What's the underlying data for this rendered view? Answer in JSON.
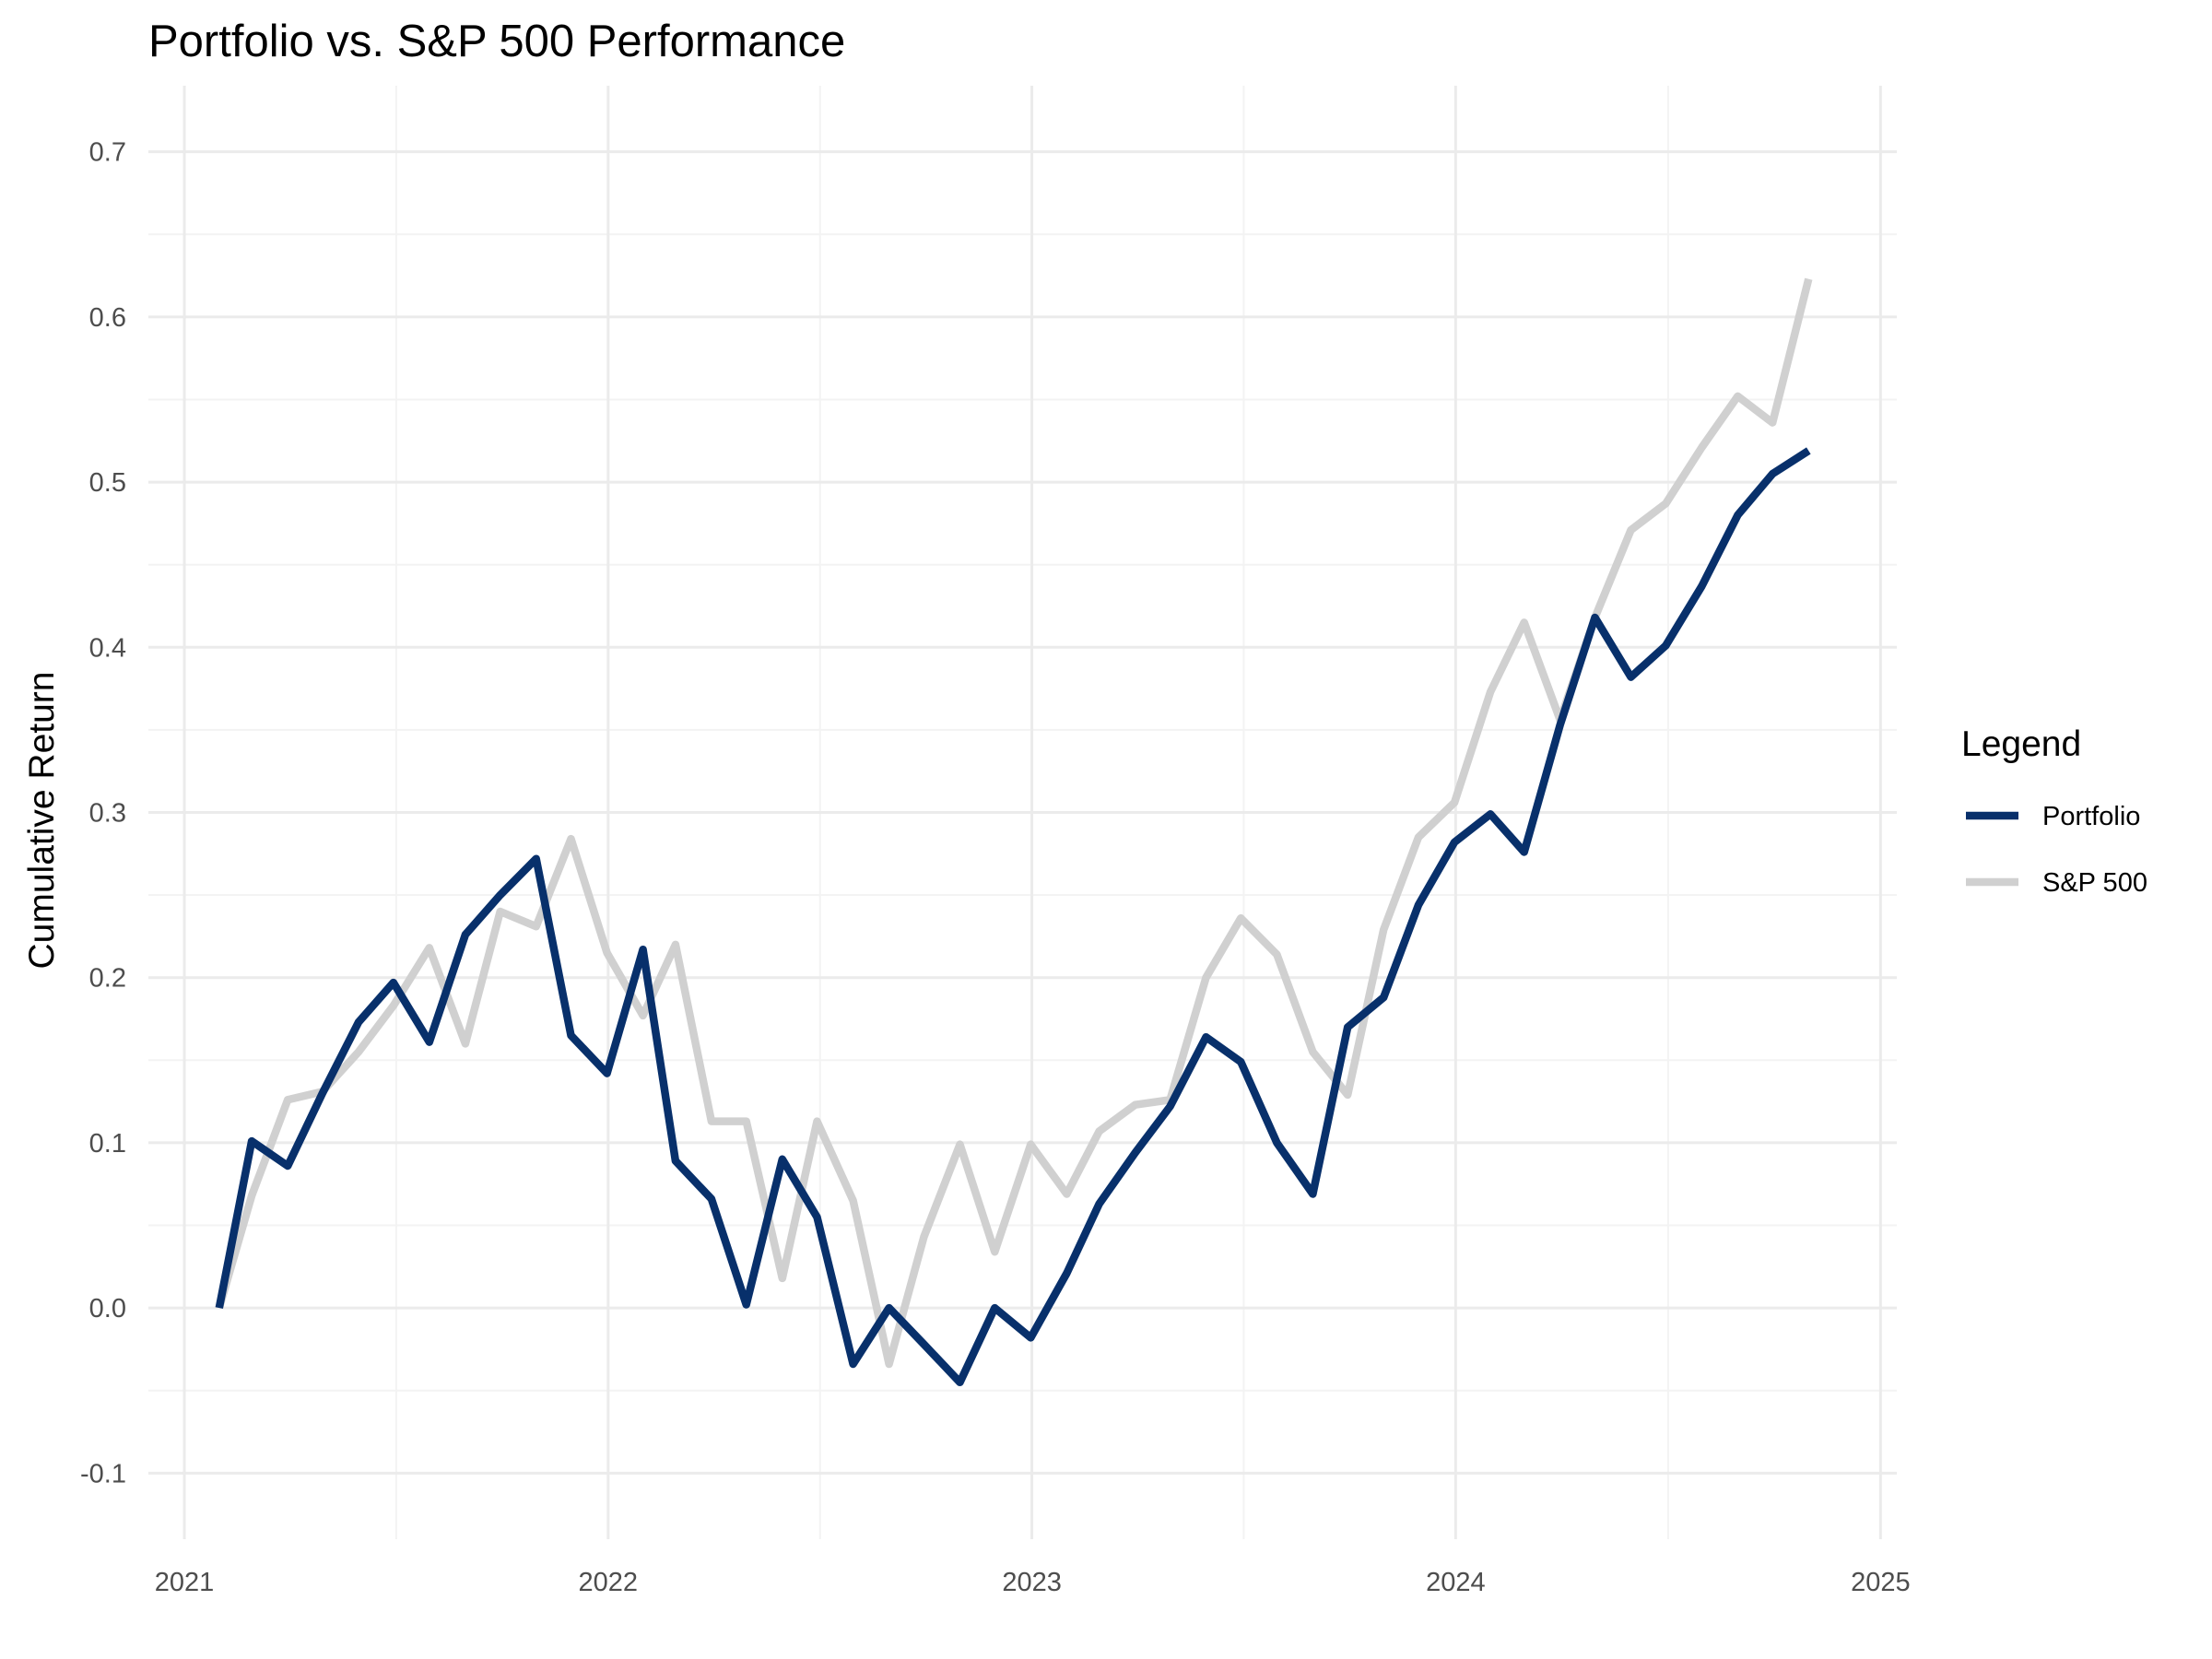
{
  "chart_data": {
    "type": "line",
    "title": "Portfolio vs. S&P 500 Performance",
    "xlabel": "",
    "ylabel": "Cumulative Return",
    "xlim": [
      "2020-12-01",
      "2025-01-15"
    ],
    "ylim": [
      -0.14,
      0.74
    ],
    "x_ticks": [
      "2021-01-01",
      "2022-01-01",
      "2023-01-01",
      "2024-01-01",
      "2025-01-01"
    ],
    "x_tick_labels": [
      "2021",
      "2022",
      "2023",
      "2024",
      "2025"
    ],
    "y_ticks": [
      -0.1,
      0.0,
      0.1,
      0.2,
      0.3,
      0.4,
      0.5,
      0.6,
      0.7
    ],
    "y_tick_labels": [
      "-0.1",
      "0.0",
      "0.1",
      "0.2",
      "0.3",
      "0.4",
      "0.5",
      "0.6",
      "0.7"
    ],
    "grid": true,
    "legend": {
      "title": "Legend",
      "position": "right"
    },
    "x": [
      "2021-01-31",
      "2021-02-28",
      "2021-03-31",
      "2021-04-30",
      "2021-05-31",
      "2021-06-30",
      "2021-07-31",
      "2021-08-31",
      "2021-09-30",
      "2021-10-31",
      "2021-11-30",
      "2021-12-31",
      "2022-01-31",
      "2022-02-28",
      "2022-03-31",
      "2022-04-30",
      "2022-05-31",
      "2022-06-30",
      "2022-07-31",
      "2022-08-31",
      "2022-09-30",
      "2022-10-31",
      "2022-11-30",
      "2022-12-31",
      "2023-01-31",
      "2023-02-28",
      "2023-03-31",
      "2023-04-30",
      "2023-05-31",
      "2023-06-30",
      "2023-07-31",
      "2023-08-31",
      "2023-09-30",
      "2023-10-31",
      "2023-11-30",
      "2023-12-31",
      "2024-01-31",
      "2024-02-29",
      "2024-03-31",
      "2024-04-30",
      "2024-05-31",
      "2024-06-30",
      "2024-07-31",
      "2024-08-31",
      "2024-09-30",
      "2024-10-31"
    ],
    "series": [
      {
        "name": "Portfolio",
        "color": "#08306b",
        "values": [
          0.0,
          0.101,
          0.086,
          0.13,
          0.173,
          0.197,
          0.161,
          0.226,
          0.25,
          0.272,
          0.165,
          0.142,
          0.217,
          0.089,
          0.066,
          0.002,
          0.09,
          0.055,
          -0.034,
          0.0,
          -0.022,
          -0.045,
          0.0,
          -0.018,
          0.021,
          0.063,
          0.094,
          0.122,
          0.164,
          0.149,
          0.1,
          0.069,
          0.17,
          0.188,
          0.244,
          0.282,
          0.299,
          0.276,
          0.353,
          0.418,
          0.382,
          0.401,
          0.437,
          0.48,
          0.505,
          0.519
        ]
      },
      {
        "name": "S&P 500",
        "color": "#d0d0d0",
        "values": [
          0.0,
          0.068,
          0.126,
          0.131,
          0.155,
          0.183,
          0.218,
          0.16,
          0.24,
          0.231,
          0.284,
          0.215,
          0.177,
          0.22,
          0.113,
          0.113,
          0.018,
          0.113,
          0.065,
          -0.034,
          0.043,
          0.099,
          0.034,
          0.099,
          0.069,
          0.107,
          0.123,
          0.126,
          0.2,
          0.236,
          0.214,
          0.155,
          0.129,
          0.229,
          0.285,
          0.306,
          0.373,
          0.415,
          0.356,
          0.418,
          0.471,
          0.487,
          0.521,
          0.552,
          0.536,
          0.623
        ]
      }
    ]
  }
}
